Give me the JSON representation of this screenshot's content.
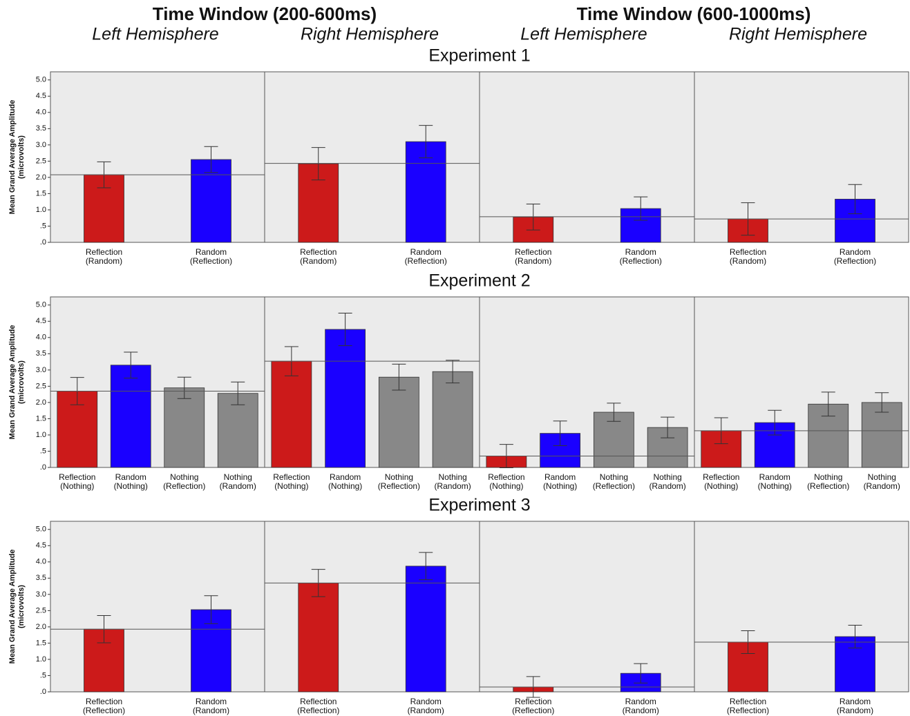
{
  "header": {
    "windows": [
      "Time Window (200-600ms)",
      "Time Window (600-1000ms)"
    ],
    "hemispheres": [
      "Left Hemisphere",
      "Right Hemisphere",
      "Left Hemisphere",
      "Right Hemisphere"
    ]
  },
  "chart_data": [
    {
      "type": "bar",
      "title": "Experiment 1",
      "ylabel": [
        "Mean Grand Average Amplitude",
        "(microvolts)"
      ],
      "ylim": [
        0,
        5.25
      ],
      "yticks": [
        {
          "value": 0,
          "label": ".0"
        },
        {
          "value": 0.5,
          "label": ".5"
        },
        {
          "value": 1,
          "label": "1.0"
        },
        1.5,
        {
          "value": 2,
          "label": "2.0"
        },
        2.5,
        {
          "value": 3,
          "label": "3.0"
        },
        3.5,
        {
          "value": 4,
          "label": "4.0"
        },
        4.5,
        {
          "value": 5,
          "label": "5.0"
        }
      ],
      "panels": [
        {
          "categories": [
            [
              "Reflection",
              "(Random)"
            ],
            [
              "Random",
              "(Reflection)"
            ]
          ],
          "values": [
            2.08,
            2.55
          ],
          "errors": [
            0.4,
            0.4
          ],
          "colors": [
            "#cc1a1a",
            "#1a00ff"
          ],
          "mean_line": 2.08
        },
        {
          "categories": [
            [
              "Reflection",
              "(Random)"
            ],
            [
              "Random",
              "(Reflection)"
            ]
          ],
          "values": [
            2.42,
            3.1
          ],
          "errors": [
            0.5,
            0.5
          ],
          "colors": [
            "#cc1a1a",
            "#1a00ff"
          ],
          "mean_line": 2.43
        },
        {
          "categories": [
            [
              "Reflection",
              "(Random)"
            ],
            [
              "Random",
              "(Reflection)"
            ]
          ],
          "values": [
            0.78,
            1.04
          ],
          "errors": [
            0.4,
            0.36
          ],
          "colors": [
            "#cc1a1a",
            "#1a00ff"
          ],
          "mean_line": 0.79
        },
        {
          "categories": [
            [
              "Reflection",
              "(Random)"
            ],
            [
              "Random",
              "(Reflection)"
            ]
          ],
          "values": [
            0.72,
            1.33
          ],
          "errors": [
            0.5,
            0.45
          ],
          "colors": [
            "#cc1a1a",
            "#1a00ff"
          ],
          "mean_line": 0.72
        }
      ]
    },
    {
      "type": "bar",
      "title": "Experiment 2",
      "ylabel": [
        "Mean Grand Average Amplitude",
        "(microvolts)"
      ],
      "ylim": [
        0,
        5.25
      ],
      "yticks": [
        {
          "value": 0,
          "label": ".0"
        },
        {
          "value": 0.5,
          "label": ".5"
        },
        {
          "value": 1,
          "label": "1.0"
        },
        1.5,
        {
          "value": 2,
          "label": "2.0"
        },
        2.5,
        {
          "value": 3,
          "label": "3.0"
        },
        3.5,
        {
          "value": 4,
          "label": "4.0"
        },
        4.5,
        {
          "value": 5,
          "label": "5.0"
        }
      ],
      "panels": [
        {
          "categories": [
            [
              "Reflection",
              "(Nothing)"
            ],
            [
              "Random",
              "(Nothing)"
            ],
            [
              "Nothing",
              "(Reflection)"
            ],
            [
              "Nothing",
              "(Random)"
            ]
          ],
          "values": [
            2.35,
            3.15,
            2.45,
            2.28
          ],
          "errors": [
            0.42,
            0.4,
            0.33,
            0.35
          ],
          "colors": [
            "#cc1a1a",
            "#1a00ff",
            "#888888",
            "#888888"
          ],
          "mean_line": 2.35
        },
        {
          "categories": [
            [
              "Reflection",
              "(Nothing)"
            ],
            [
              "Random",
              "(Nothing)"
            ],
            [
              "Nothing",
              "(Reflection)"
            ],
            [
              "Nothing",
              "(Random)"
            ]
          ],
          "values": [
            3.27,
            4.25,
            2.78,
            2.95
          ],
          "errors": [
            0.45,
            0.5,
            0.4,
            0.35
          ],
          "colors": [
            "#cc1a1a",
            "#1a00ff",
            "#888888",
            "#888888"
          ],
          "mean_line": 3.27
        },
        {
          "categories": [
            [
              "Reflection",
              "(Nothing)"
            ],
            [
              "Random",
              "(Nothing)"
            ],
            [
              "Nothing",
              "(Reflection)"
            ],
            [
              "Nothing",
              "(Random)"
            ]
          ],
          "values": [
            0.35,
            1.05,
            1.7,
            1.23
          ],
          "errors": [
            0.36,
            0.38,
            0.28,
            0.32
          ],
          "colors": [
            "#cc1a1a",
            "#1a00ff",
            "#888888",
            "#888888"
          ],
          "mean_line": 0.35
        },
        {
          "categories": [
            [
              "Reflection",
              "(Nothing)"
            ],
            [
              "Random",
              "(Nothing)"
            ],
            [
              "Nothing",
              "(Reflection)"
            ],
            [
              "Nothing",
              "(Random)"
            ]
          ],
          "values": [
            1.13,
            1.38,
            1.95,
            2.0
          ],
          "errors": [
            0.4,
            0.38,
            0.37,
            0.3
          ],
          "colors": [
            "#cc1a1a",
            "#1a00ff",
            "#888888",
            "#888888"
          ],
          "mean_line": 1.13
        }
      ]
    },
    {
      "type": "bar",
      "title": "Experiment 3",
      "ylabel": [
        "Mean Grand Average Amplitude",
        "(microvolts)"
      ],
      "ylim": [
        0,
        5.25
      ],
      "yticks": [
        {
          "value": 0,
          "label": ".0"
        },
        {
          "value": 0.5,
          "label": ".5"
        },
        {
          "value": 1,
          "label": "1.0"
        },
        1.5,
        {
          "value": 2,
          "label": "2.0"
        },
        2.5,
        {
          "value": 3,
          "label": "3.0"
        },
        3.5,
        {
          "value": 4,
          "label": "4.0"
        },
        4.5,
        {
          "value": 5,
          "label": "5.0"
        }
      ],
      "panels": [
        {
          "categories": [
            [
              "Reflection",
              "(Reflection)"
            ],
            [
              "Random",
              "(Random)"
            ]
          ],
          "values": [
            1.93,
            2.53
          ],
          "errors": [
            0.42,
            0.43
          ],
          "colors": [
            "#cc1a1a",
            "#1a00ff"
          ],
          "mean_line": 1.93
        },
        {
          "categories": [
            [
              "Reflection",
              "(Reflection)"
            ],
            [
              "Random",
              "(Random)"
            ]
          ],
          "values": [
            3.35,
            3.87
          ],
          "errors": [
            0.42,
            0.42
          ],
          "colors": [
            "#cc1a1a",
            "#1a00ff"
          ],
          "mean_line": 3.35
        },
        {
          "categories": [
            [
              "Reflection",
              "(Reflection)"
            ],
            [
              "Random",
              "(Random)"
            ]
          ],
          "values": [
            0.15,
            0.57
          ],
          "errors": [
            0.32,
            0.3
          ],
          "colors": [
            "#cc1a1a",
            "#1a00ff"
          ],
          "mean_line": 0.15
        },
        {
          "categories": [
            [
              "Reflection",
              "(Reflection)"
            ],
            [
              "Random",
              "(Random)"
            ]
          ],
          "values": [
            1.53,
            1.7
          ],
          "errors": [
            0.35,
            0.35
          ],
          "colors": [
            "#cc1a1a",
            "#1a00ff"
          ],
          "mean_line": 1.53
        }
      ]
    }
  ]
}
